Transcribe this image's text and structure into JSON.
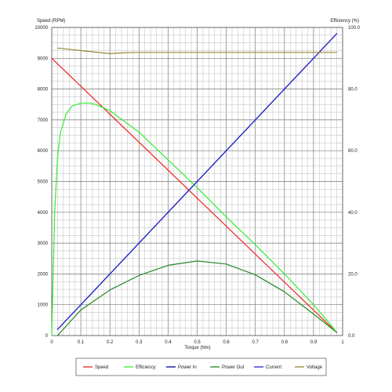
{
  "chart_data": {
    "type": "line",
    "xlabel": "Torque (Nm)",
    "ylabel_left": "Speed (RPM)",
    "ylabel_right": "Efficiency (%)",
    "xlim": [
      0,
      1
    ],
    "ylim_left": [
      0,
      10000
    ],
    "ylim_right": [
      0,
      100
    ],
    "x_ticks": [
      "0",
      "0.1",
      "0.2",
      "0.3",
      "0.4",
      "0.5",
      "0.6",
      "0.7",
      "0.8",
      "0.9",
      "1"
    ],
    "y_left_ticks": [
      "0",
      "1000",
      "2000",
      "3000",
      "4000",
      "5000",
      "6000",
      "7000",
      "8000",
      "9000",
      "10000"
    ],
    "y_right_ticks": [
      "0.0",
      "20.0",
      "40.0",
      "60.0",
      "80.0",
      "100.0"
    ],
    "grid": true,
    "legend_position": "bottom",
    "series": [
      {
        "name": "Speed",
        "color": "#ee2222",
        "axis": "left",
        "x": [
          0,
          0.98
        ],
        "y": [
          9000,
          100
        ]
      },
      {
        "name": "Efficiency",
        "color": "#33ee33",
        "axis": "right",
        "x": [
          0.0,
          0.005,
          0.01,
          0.02,
          0.03,
          0.05,
          0.07,
          0.1,
          0.13,
          0.15,
          0.2,
          0.25,
          0.3,
          0.4,
          0.5,
          0.6,
          0.7,
          0.8,
          0.9,
          0.95,
          0.98
        ],
        "y": [
          0.0,
          20.0,
          40.0,
          58.0,
          66.0,
          72.0,
          74.5,
          75.4,
          75.5,
          75.0,
          73.0,
          69.5,
          66.0,
          57.0,
          48.0,
          38.5,
          29.5,
          20.0,
          10.0,
          4.5,
          1.0
        ]
      },
      {
        "name": "Power In",
        "color": "#000099",
        "axis": "left",
        "x": [
          0.02,
          0.98
        ],
        "y": [
          200,
          9800
        ]
      },
      {
        "name": "Power Out",
        "color": "#228822",
        "axis": "left",
        "x": [
          0.02,
          0.1,
          0.2,
          0.3,
          0.4,
          0.5,
          0.6,
          0.7,
          0.8,
          0.9,
          0.98
        ],
        "y": [
          0,
          830,
          1480,
          1950,
          2280,
          2420,
          2320,
          1970,
          1420,
          700,
          100
        ]
      },
      {
        "name": "Current",
        "color": "#2222cc",
        "axis": "left",
        "x": [
          0.02,
          0.98
        ],
        "y": [
          200,
          9800
        ]
      },
      {
        "name": "Voltage",
        "color": "#998833",
        "axis": "left",
        "x": [
          0.02,
          0.1,
          0.2,
          0.25,
          0.3,
          0.5,
          0.7,
          0.9,
          0.98
        ],
        "y": [
          9330,
          9250,
          9150,
          9180,
          9190,
          9190,
          9190,
          9190,
          9190
        ]
      }
    ]
  }
}
